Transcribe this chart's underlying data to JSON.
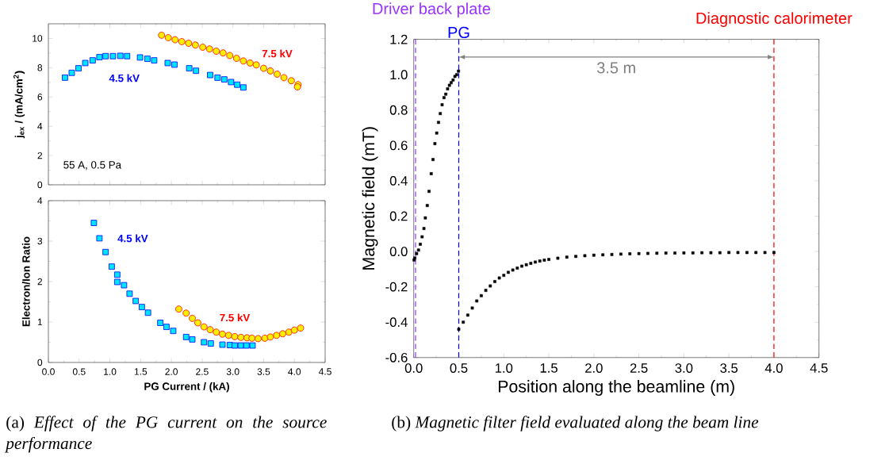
{
  "chart_data": [
    {
      "type": "scatter",
      "ylabel": "j$_{ex}$ / (mA/cm$^{2}$)",
      "xlim": [
        0,
        4.5
      ],
      "ylim": [
        0,
        11
      ],
      "xticks": [
        {
          "value": 0,
          "label": null
        },
        {
          "value": 0.5,
          "label": null
        },
        {
          "value": 1,
          "label": null
        },
        {
          "value": 1.5,
          "label": null
        },
        {
          "value": 2,
          "label": null
        },
        {
          "value": 2.5,
          "label": null
        },
        {
          "value": 3,
          "label": null
        },
        {
          "value": 3.5,
          "label": null
        },
        {
          "value": 4,
          "label": null
        },
        {
          "value": 4.5,
          "label": null
        }
      ],
      "yticks": [
        0,
        2,
        4,
        6,
        8,
        10
      ],
      "tick_labels": "y",
      "series": [
        {
          "name": "4.5 kV",
          "color": "#00e5ff",
          "marker": "square",
          "x": [
            0.27,
            0.38,
            0.49,
            0.6,
            0.72,
            0.83,
            0.93,
            1.05,
            1.17,
            1.28,
            1.49,
            1.61,
            1.72,
            1.94,
            2.05,
            2.29,
            2.4,
            2.63,
            2.75,
            2.86,
            2.97,
            3.07,
            3.17
          ],
          "values": [
            7.32,
            7.65,
            7.96,
            8.32,
            8.5,
            8.72,
            8.79,
            8.79,
            8.81,
            8.79,
            8.7,
            8.61,
            8.5,
            8.32,
            8.21,
            7.96,
            7.79,
            7.5,
            7.32,
            7.2,
            7.02,
            6.84,
            6.65
          ]
        },
        {
          "name": "7.5 kV",
          "color": "#ffee00",
          "marker": "circle",
          "x": [
            1.84,
            1.95,
            2.06,
            2.17,
            2.28,
            2.39,
            2.51,
            2.62,
            2.73,
            2.84,
            2.95,
            3.06,
            3.17,
            3.28,
            3.38,
            3.5,
            3.61,
            3.72,
            3.83,
            3.95,
            4.06,
            4.05
          ],
          "values": [
            10.22,
            10.05,
            9.91,
            9.78,
            9.67,
            9.55,
            9.4,
            9.28,
            9.13,
            9.01,
            8.83,
            8.64,
            8.46,
            8.32,
            8.19,
            7.96,
            7.78,
            7.56,
            7.32,
            7.11,
            6.84,
            6.69
          ]
        }
      ],
      "annotations": [
        "55 A, 0.5 Pa"
      ]
    },
    {
      "type": "scatter",
      "xlabel": "PG Current / (kA)",
      "ylabel": "Electron/Ion Ratio",
      "xlim": [
        0,
        4.5
      ],
      "ylim": [
        0,
        4
      ],
      "xticks": [
        {
          "value": 0,
          "label": "0.0"
        },
        {
          "value": 0.5,
          "label": "0.5"
        },
        {
          "value": 1,
          "label": "1.0"
        },
        {
          "value": 1.5,
          "label": "1.5"
        },
        {
          "value": 2,
          "label": "2.0"
        },
        {
          "value": 2.5,
          "label": "2.5"
        },
        {
          "value": 3,
          "label": "3.0"
        },
        {
          "value": 3.5,
          "label": "3.5"
        },
        {
          "value": 4,
          "label": "4.0"
        },
        {
          "value": 4.5,
          "label": "4.5"
        }
      ],
      "yticks": [
        0,
        1,
        2,
        3,
        4
      ],
      "series": [
        {
          "name": "4.5 kV",
          "color": "#00e5ff",
          "marker": "square",
          "x": [
            0.74,
            0.83,
            0.93,
            1.03,
            1.12,
            1.12,
            1.23,
            1.32,
            1.42,
            1.52,
            1.62,
            1.82,
            1.92,
            2.03,
            2.24,
            2.34,
            2.53,
            2.64,
            2.83,
            2.95,
            3.03,
            3.13,
            3.22,
            3.32
          ],
          "values": [
            3.45,
            3.07,
            2.73,
            2.37,
            2.17,
            1.99,
            1.91,
            1.7,
            1.52,
            1.37,
            1.23,
            0.98,
            0.88,
            0.78,
            0.63,
            0.57,
            0.5,
            0.47,
            0.44,
            0.43,
            0.42,
            0.42,
            0.42,
            0.42
          ]
        },
        {
          "name": "7.5 kV",
          "color": "#ffee00",
          "marker": "circle",
          "x": [
            2.12,
            2.24,
            2.34,
            2.43,
            2.53,
            2.63,
            2.73,
            2.83,
            2.93,
            3.03,
            3.13,
            3.23,
            3.31,
            3.41,
            3.52,
            3.61,
            3.71,
            3.81,
            3.91,
            4.0,
            4.1
          ],
          "values": [
            1.32,
            1.22,
            1.09,
            0.98,
            0.88,
            0.81,
            0.75,
            0.7,
            0.67,
            0.64,
            0.62,
            0.61,
            0.6,
            0.59,
            0.6,
            0.63,
            0.67,
            0.71,
            0.75,
            0.8,
            0.85
          ]
        }
      ],
      "annotations": [
        "(a) *Effect of the PG current on the source performance*"
      ]
    },
    {
      "type": "scatter",
      "xlabel": "Position along the beamline (m)",
      "ylabel": "Magnetic field (mT)",
      "xlim": [
        0,
        4.5
      ],
      "ylim": [
        -0.6,
        1.2
      ],
      "xticks": [
        {
          "value": 0,
          "label": "0.0"
        },
        {
          "value": 0.5,
          "label": "0.5"
        },
        {
          "value": 1,
          "label": "1.0"
        },
        {
          "value": 1.5,
          "label": "1.5"
        },
        {
          "value": 2,
          "label": "2.0"
        },
        {
          "value": 2.5,
          "label": "2.5"
        },
        {
          "value": 3,
          "label": "3.0"
        },
        {
          "value": 3.5,
          "label": "3.5"
        },
        {
          "value": 4,
          "label": "4.0"
        },
        {
          "value": 4.5,
          "label": "4.5"
        }
      ],
      "yticks": [
        -0.6,
        -0.4,
        -0.2,
        {
          "value": 0,
          "label": "0.0"
        },
        0.2,
        0.4,
        0.6,
        0.8,
        {
          "value": 1,
          "label": "1.0"
        },
        1.2
      ],
      "marker": "square",
      "series": [
        {
          "color": "#000000",
          "x": [
            0.004,
            0.012,
            0.032,
            0.053,
            0.073,
            0.093,
            0.113,
            0.129,
            0.15,
            0.17,
            0.194,
            0.214,
            0.235,
            0.255,
            0.275,
            0.295,
            0.315,
            0.336,
            0.356,
            0.376,
            0.396,
            0.416,
            0.437,
            0.457,
            0.477,
            0.497
          ],
          "values": [
            -0.048,
            -0.037,
            -0.012,
            0.008,
            0.041,
            0.083,
            0.13,
            0.19,
            0.26,
            0.34,
            0.44,
            0.52,
            0.61,
            0.67,
            0.73,
            0.78,
            0.83,
            0.87,
            0.89,
            0.92,
            0.94,
            0.955,
            0.97,
            0.99,
            1.0,
            1.02
          ]
        },
        {
          "color": "#000000",
          "x": [
            0.5,
            0.55,
            0.6,
            0.65,
            0.7,
            0.75,
            0.8,
            0.85,
            0.9,
            0.95,
            1.0,
            1.05,
            1.1,
            1.15,
            1.2,
            1.25,
            1.3,
            1.35,
            1.4,
            1.45,
            1.5,
            1.6,
            1.7,
            1.8,
            1.9,
            2.0,
            2.1,
            2.2,
            2.3,
            2.4,
            2.5,
            2.6,
            2.7,
            2.8,
            2.9,
            3.0,
            3.1,
            3.2,
            3.3,
            3.4,
            3.5,
            3.6,
            3.7,
            3.8,
            3.9,
            4.0
          ],
          "values": [
            -0.44,
            -0.4,
            -0.36,
            -0.32,
            -0.28,
            -0.25,
            -0.22,
            -0.195,
            -0.17,
            -0.15,
            -0.135,
            -0.118,
            -0.105,
            -0.094,
            -0.083,
            -0.075,
            -0.067,
            -0.06,
            -0.054,
            -0.049,
            -0.045,
            -0.038,
            -0.032,
            -0.028,
            -0.024,
            -0.021,
            -0.019,
            -0.017,
            -0.015,
            -0.013,
            -0.012,
            -0.011,
            -0.01,
            -0.009,
            -0.009,
            -0.008,
            -0.008,
            -0.007,
            -0.007,
            -0.007,
            -0.006,
            -0.006,
            -0.006,
            -0.006,
            -0.006,
            -0.006
          ]
        }
      ],
      "ref_lines": [
        {
          "axis": "x",
          "value": 0.02,
          "label": "Driver back plate",
          "color": "#9933ff",
          "line_style": "dashed"
        },
        {
          "axis": "x",
          "value": 0.5,
          "label": "PG",
          "color": "#0000ff",
          "line_style": "dashed"
        },
        {
          "axis": "x",
          "value": 4.0,
          "label": "Diagnostic calorimeter",
          "color": "#ff0000",
          "line_style": "dashed"
        }
      ],
      "annotations": [
        "3.5 m",
        "(b) *Magnetic filter field evaluated along the beam line*"
      ]
    }
  ]
}
